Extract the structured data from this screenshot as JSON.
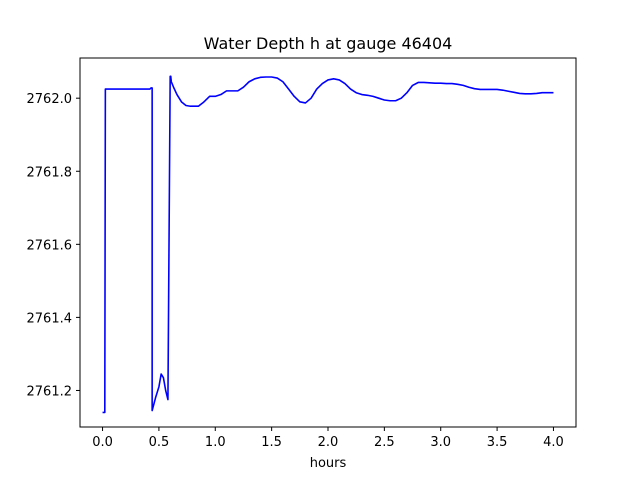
{
  "chart_data": {
    "type": "line",
    "title": "Water Depth h at gauge 46404",
    "xlabel": "hours",
    "ylabel": "",
    "xlim": [
      -0.2,
      4.2
    ],
    "ylim": [
      2761.1,
      2762.11
    ],
    "xticks": [
      0.0,
      0.5,
      1.0,
      1.5,
      2.0,
      2.5,
      3.0,
      3.5,
      4.0
    ],
    "xtick_labels": [
      "0.0",
      "0.5",
      "1.0",
      "1.5",
      "2.0",
      "2.5",
      "3.0",
      "3.5",
      "4.0"
    ],
    "yticks": [
      2761.2,
      2761.4,
      2761.6,
      2761.8,
      2762.0
    ],
    "ytick_labels": [
      "2761.2",
      "2761.4",
      "2761.6",
      "2761.8",
      "2762.0"
    ],
    "grid": false,
    "series": [
      {
        "color": "#0000ff",
        "x": [
          0.0,
          0.02,
          0.02,
          0.025,
          0.1,
          0.2,
          0.3,
          0.38,
          0.42,
          0.43,
          0.44,
          0.44,
          0.47,
          0.5,
          0.52,
          0.54,
          0.56,
          0.58,
          0.6,
          0.605,
          0.61,
          0.63,
          0.66,
          0.7,
          0.74,
          0.78,
          0.8,
          0.85,
          0.9,
          0.95,
          1.0,
          1.05,
          1.1,
          1.15,
          1.2,
          1.25,
          1.3,
          1.35,
          1.4,
          1.45,
          1.5,
          1.55,
          1.6,
          1.65,
          1.7,
          1.75,
          1.8,
          1.85,
          1.9,
          1.95,
          2.0,
          2.05,
          2.1,
          2.15,
          2.2,
          2.25,
          2.3,
          2.35,
          2.4,
          2.45,
          2.5,
          2.55,
          2.6,
          2.65,
          2.7,
          2.75,
          2.8,
          2.85,
          2.9,
          2.95,
          3.0,
          3.05,
          3.1,
          3.15,
          3.2,
          3.25,
          3.3,
          3.35,
          3.4,
          3.45,
          3.5,
          3.55,
          3.6,
          3.65,
          3.7,
          3.75,
          3.8,
          3.85,
          3.9,
          3.95,
          4.0
        ],
        "y": [
          2761.14,
          2761.14,
          2761.14,
          2762.025,
          2762.025,
          2762.025,
          2762.025,
          2762.025,
          2762.025,
          2762.028,
          2762.028,
          2761.145,
          2761.18,
          2761.21,
          2761.245,
          2761.235,
          2761.2,
          2761.175,
          2762.06,
          2762.06,
          2762.045,
          2762.03,
          2762.01,
          2761.99,
          2761.98,
          2761.978,
          2761.978,
          2761.978,
          2761.99,
          2762.005,
          2762.005,
          2762.01,
          2762.02,
          2762.02,
          2762.02,
          2762.03,
          2762.045,
          2762.053,
          2762.057,
          2762.058,
          2762.058,
          2762.055,
          2762.045,
          2762.025,
          2762.005,
          2761.99,
          2761.987,
          2762.0,
          2762.025,
          2762.04,
          2762.05,
          2762.053,
          2762.05,
          2762.04,
          2762.025,
          2762.015,
          2762.01,
          2762.008,
          2762.005,
          2762.0,
          2761.995,
          2761.993,
          2761.993,
          2762.0,
          2762.015,
          2762.035,
          2762.043,
          2762.043,
          2762.042,
          2762.041,
          2762.041,
          2762.04,
          2762.04,
          2762.038,
          2762.035,
          2762.03,
          2762.026,
          2762.024,
          2762.024,
          2762.024,
          2762.024,
          2762.022,
          2762.019,
          2762.016,
          2762.013,
          2762.012,
          2762.012,
          2762.013,
          2762.015,
          2762.015,
          2762.015
        ]
      }
    ]
  }
}
